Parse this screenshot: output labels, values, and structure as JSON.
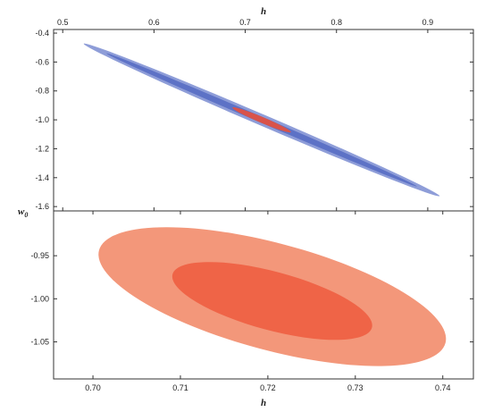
{
  "chart_data": [
    {
      "type": "contour",
      "panel": "top",
      "xlabel": "h",
      "ylabel": "w",
      "ylabel_subscript": "0",
      "x_axis_position": "top",
      "xlim": [
        0.49,
        0.95
      ],
      "ylim": [
        -1.63,
        -0.375
      ],
      "xticks": [
        0.5,
        0.6,
        0.7,
        0.8,
        0.9
      ],
      "xtick_labels": [
        "0.5",
        "0.6",
        "0.7",
        "0.8",
        "0.9"
      ],
      "yticks": [
        -0.4,
        -0.6,
        -0.8,
        -1.0,
        -1.2,
        -1.4,
        -1.6
      ],
      "ytick_labels": [
        "-0.4",
        "-0.6",
        "-0.8",
        "-1.0",
        "-1.2",
        "-1.4",
        "-1.6"
      ],
      "grid": false,
      "regions": [
        {
          "color": "#8e9dd8",
          "center": [
            0.718,
            -1.0
          ],
          "semi_major": [
            0.195,
            0.527
          ],
          "semi_minor": 0.017
        },
        {
          "color": "#5d72c6",
          "center": [
            0.718,
            -1.0
          ],
          "semi_major": [
            0.17,
            0.46
          ],
          "semi_minor": 0.009
        },
        {
          "color": "#d9534a",
          "center": [
            0.718,
            -1.0
          ],
          "semi_major": [
            0.032,
            0.085
          ],
          "semi_minor": 0.009
        }
      ]
    },
    {
      "type": "contour",
      "panel": "bottom",
      "xlabel": "h",
      "ylabel": "",
      "x_axis_position": "bottom",
      "xlim": [
        0.6955,
        0.7435
      ],
      "ylim": [
        -1.093,
        -0.898
      ],
      "xticks": [
        0.7,
        0.71,
        0.72,
        0.73,
        0.74
      ],
      "xtick_labels": [
        "0.70",
        "0.71",
        "0.72",
        "0.73",
        "0.74"
      ],
      "yticks": [
        -0.95,
        -1.0,
        -1.05
      ],
      "ytick_labels": [
        "-0.95",
        "-1.00",
        "-1.05"
      ],
      "grid": false,
      "regions": [
        {
          "color": "#f3977a",
          "center": [
            0.7205,
            -0.9975
          ],
          "rx": 0.0205,
          "ry": 0.062,
          "rotation_deg": 15
        },
        {
          "color": "#ef6447",
          "center": [
            0.7205,
            -1.0025
          ],
          "rx": 0.0118,
          "ry": 0.034,
          "rotation_deg": 15
        }
      ]
    }
  ]
}
